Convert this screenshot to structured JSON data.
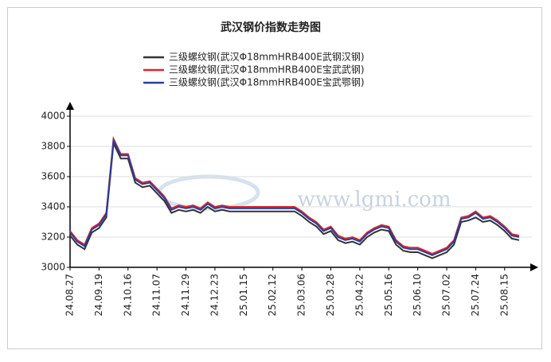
{
  "chart_data": {
    "type": "line",
    "title": "武汉钢价指数走势图",
    "watermark": "www.lgmi.com",
    "categories": [
      "24.08.27",
      null,
      null,
      null,
      "24.09.19",
      null,
      null,
      null,
      "24.10.16",
      null,
      null,
      null,
      "24.11.07",
      null,
      null,
      null,
      "24.11.29",
      null,
      null,
      null,
      "24.12.23",
      null,
      null,
      null,
      "25.01.15",
      null,
      null,
      null,
      "25.02.12",
      null,
      null,
      null,
      "25.03.06",
      null,
      null,
      null,
      "25.03.28",
      null,
      null,
      null,
      "25.04.22",
      null,
      null,
      null,
      "25.05.16",
      null,
      null,
      null,
      "25.06.10",
      null,
      null,
      null,
      "25.07.02",
      null,
      null,
      null,
      "25.07.24",
      null,
      null,
      null,
      "25.08.15",
      null,
      null
    ],
    "series": [
      {
        "name": "三级螺纹钢(武汉Φ18mmHRB400E武钢汉钢)",
        "color": "#333333",
        "values": [
          3210,
          3150,
          3120,
          3230,
          3260,
          3330,
          3820,
          3720,
          3720,
          3560,
          3530,
          3540,
          3490,
          3440,
          3360,
          3380,
          3370,
          3380,
          3360,
          3400,
          3370,
          3380,
          3370,
          3370,
          3370,
          3370,
          3370,
          3370,
          3370,
          3370,
          3370,
          3370,
          3340,
          3300,
          3270,
          3220,
          3240,
          3180,
          3160,
          3170,
          3150,
          3200,
          3230,
          3250,
          3240,
          3150,
          3110,
          3100,
          3100,
          3080,
          3060,
          3080,
          3100,
          3150,
          3300,
          3310,
          3330,
          3300,
          3310,
          3280,
          3240,
          3190,
          3180
        ]
      },
      {
        "name": "三级螺纹钢(武汉Φ18mmHRB400E宝武武钢)",
        "color": "#e0242a",
        "values": [
          3240,
          3180,
          3150,
          3260,
          3290,
          3360,
          3850,
          3750,
          3750,
          3590,
          3560,
          3570,
          3520,
          3470,
          3390,
          3410,
          3400,
          3410,
          3390,
          3430,
          3400,
          3410,
          3400,
          3400,
          3400,
          3400,
          3400,
          3400,
          3400,
          3400,
          3400,
          3400,
          3370,
          3330,
          3300,
          3250,
          3270,
          3210,
          3190,
          3200,
          3180,
          3230,
          3260,
          3280,
          3270,
          3180,
          3140,
          3130,
          3130,
          3110,
          3090,
          3110,
          3130,
          3180,
          3330,
          3340,
          3370,
          3330,
          3340,
          3310,
          3270,
          3220,
          3210
        ]
      },
      {
        "name": "三级螺纹钢(武汉Φ18mmHRB400E宝武鄂钢)",
        "color": "#2a3f9d",
        "values": [
          3230,
          3170,
          3140,
          3250,
          3280,
          3350,
          3840,
          3740,
          3740,
          3580,
          3550,
          3560,
          3510,
          3460,
          3380,
          3400,
          3390,
          3400,
          3380,
          3420,
          3390,
          3400,
          3390,
          3390,
          3390,
          3390,
          3390,
          3390,
          3390,
          3390,
          3390,
          3390,
          3360,
          3320,
          3290,
          3240,
          3260,
          3200,
          3180,
          3190,
          3170,
          3220,
          3250,
          3270,
          3260,
          3170,
          3130,
          3120,
          3120,
          3100,
          3080,
          3100,
          3120,
          3170,
          3320,
          3330,
          3360,
          3320,
          3330,
          3300,
          3260,
          3210,
          3200
        ]
      }
    ],
    "ylim": [
      3000,
      4000
    ],
    "yticks": [
      3000,
      3200,
      3400,
      3600,
      3800,
      4000
    ],
    "grid": true
  }
}
